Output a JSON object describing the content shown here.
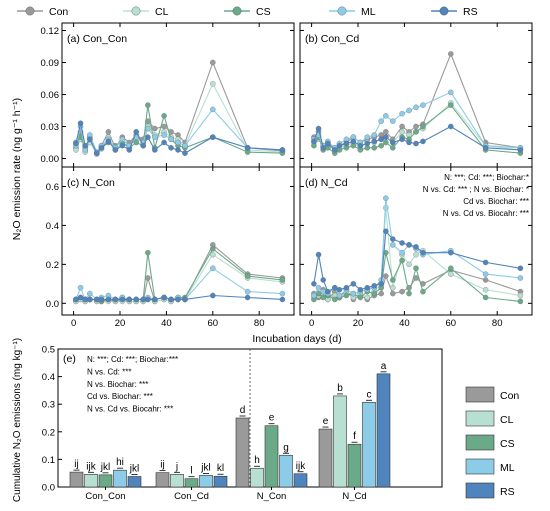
{
  "colors": {
    "Con": "#9a9a9a",
    "CL": "#b8e0d2",
    "CS": "#6aaa88",
    "ML": "#8ccce8",
    "RS": "#4f84bd"
  },
  "top_legend": [
    "Con",
    "CL",
    "CS",
    "ML",
    "RS"
  ],
  "line_panels": {
    "ylabel": "N₂O emission rate (ng g⁻¹ h⁻¹)",
    "xlabel": "Incubation days (d)",
    "x_ticks": [
      "0",
      "20",
      "40",
      "60",
      "80"
    ],
    "y_ticks_top": [
      "0.00",
      "0.03",
      "0.06",
      "0.09",
      "0.12"
    ],
    "y_ticks_bottom": [
      "0.0",
      "0.2",
      "0.4",
      "0.6"
    ],
    "panel_labels": [
      "(a) Con_Con",
      "(b) Con_Cd",
      "(c) N_Con",
      "(d) N_Cd"
    ],
    "stats_d": [
      "N: ***; Cd: ***; Biochar:*",
      "N vs. Cd: *** ; N vs. Biochar: *",
      "Cd vs. Biochar: ***",
      "N vs. Cd vs. Biocahr: ***"
    ]
  },
  "bar_panel": {
    "panel_label": "(e)",
    "ylabel": "Cumulative N₂O emissions (mg kg⁻¹)",
    "y_ticks": [
      "0.0",
      "0.1",
      "0.2",
      "0.3",
      "0.4",
      "0.5"
    ],
    "stats": [
      "N: ***; Cd: ***; Biochar:***",
      "N vs. Cd: ***",
      "N vs. Biochar: ***",
      "Cd vs. Biochar: ***",
      "N vs. Cd vs. Biocahr: ***"
    ],
    "legend": [
      "Con",
      "CL",
      "CS",
      "ML",
      "RS"
    ]
  },
  "chart_data": [
    {
      "type": "line",
      "title": "(a) Con_Con",
      "xlabel": "Incubation days (d)",
      "ylabel": "N₂O emission rate (ng g⁻¹ h⁻¹)",
      "x": [
        1,
        3,
        5,
        7,
        10,
        12,
        15,
        18,
        21,
        24,
        27,
        30,
        32,
        35,
        39,
        42,
        45,
        48,
        60,
        75,
        90
      ],
      "xlim": [
        -5,
        95
      ],
      "ylim": [
        -0.008,
        0.127
      ],
      "series": [
        {
          "name": "Con",
          "values": [
            0.01,
            0.025,
            0.008,
            0.02,
            0.005,
            0.012,
            0.025,
            0.01,
            0.02,
            0.015,
            0.022,
            0.018,
            0.035,
            0.028,
            0.03,
            0.025,
            0.022,
            0.015,
            0.09,
            0.01,
            0.007
          ]
        },
        {
          "name": "CL",
          "values": [
            0.008,
            0.018,
            0.006,
            0.015,
            0.004,
            0.009,
            0.02,
            0.008,
            0.015,
            0.012,
            0.018,
            0.015,
            0.03,
            0.022,
            0.025,
            0.02,
            0.018,
            0.012,
            0.07,
            0.008,
            0.006
          ]
        },
        {
          "name": "CS",
          "values": [
            0.015,
            0.02,
            0.01,
            0.018,
            0.005,
            0.01,
            0.015,
            0.012,
            0.015,
            0.01,
            0.015,
            0.012,
            0.05,
            0.01,
            0.04,
            0.018,
            0.012,
            0.01,
            0.02,
            0.006,
            0.005
          ]
        },
        {
          "name": "ML",
          "values": [
            0.012,
            0.03,
            0.008,
            0.022,
            0.006,
            0.012,
            0.018,
            0.01,
            0.018,
            0.012,
            0.02,
            0.015,
            0.028,
            0.02,
            0.022,
            0.018,
            0.015,
            0.012,
            0.046,
            0.01,
            0.008
          ]
        },
        {
          "name": "RS",
          "values": [
            0.014,
            0.033,
            0.012,
            0.018,
            0.005,
            0.01,
            0.016,
            0.008,
            0.012,
            0.008,
            0.025,
            0.012,
            0.02,
            0.008,
            0.015,
            0.01,
            0.008,
            0.005,
            0.02,
            0.01,
            0.008
          ]
        }
      ]
    },
    {
      "type": "line",
      "title": "(b) Con_Cd",
      "xlabel": "Incubation days (d)",
      "ylabel": "",
      "x": [
        1,
        3,
        5,
        7,
        10,
        12,
        15,
        18,
        21,
        24,
        27,
        30,
        32,
        35,
        39,
        42,
        45,
        48,
        60,
        75,
        90
      ],
      "xlim": [
        -5,
        95
      ],
      "ylim": [
        -0.008,
        0.127
      ],
      "series": [
        {
          "name": "Con",
          "values": [
            0.02,
            0.025,
            0.012,
            0.015,
            0.01,
            0.012,
            0.015,
            0.02,
            0.015,
            0.018,
            0.02,
            0.022,
            0.025,
            0.018,
            0.03,
            0.025,
            0.03,
            0.032,
            0.098,
            0.015,
            0.01
          ]
        },
        {
          "name": "CL",
          "values": [
            0.015,
            0.018,
            0.01,
            0.012,
            0.008,
            0.01,
            0.012,
            0.015,
            0.01,
            0.015,
            0.015,
            0.018,
            0.02,
            0.015,
            0.025,
            0.022,
            0.025,
            0.028,
            0.052,
            0.012,
            0.008
          ]
        },
        {
          "name": "CS",
          "values": [
            0.012,
            0.02,
            0.008,
            0.01,
            0.005,
            0.008,
            0.01,
            0.012,
            0.008,
            0.01,
            0.01,
            0.012,
            0.015,
            0.01,
            0.02,
            0.018,
            0.025,
            0.03,
            0.05,
            0.008,
            0.005
          ]
        },
        {
          "name": "ML",
          "values": [
            0.018,
            0.022,
            0.012,
            0.016,
            0.01,
            0.014,
            0.018,
            0.02,
            0.015,
            0.02,
            0.022,
            0.035,
            0.04,
            0.035,
            0.042,
            0.045,
            0.048,
            0.05,
            0.062,
            0.012,
            0.01
          ]
        },
        {
          "name": "RS",
          "values": [
            0.016,
            0.028,
            0.01,
            0.014,
            0.008,
            0.012,
            0.014,
            0.016,
            0.012,
            0.014,
            0.016,
            0.018,
            0.02,
            0.015,
            0.018,
            0.015,
            0.014,
            0.016,
            0.03,
            0.01,
            0.008
          ]
        }
      ]
    },
    {
      "type": "line",
      "title": "(c) N_Con",
      "xlabel": "Incubation days (d)",
      "ylabel": "",
      "x": [
        1,
        3,
        5,
        7,
        10,
        12,
        15,
        18,
        21,
        24,
        27,
        30,
        32,
        35,
        39,
        42,
        45,
        48,
        60,
        75,
        90
      ],
      "xlim": [
        -5,
        95
      ],
      "ylim": [
        -0.06,
        0.7
      ],
      "series": [
        {
          "name": "Con",
          "values": [
            0.01,
            0.02,
            0.01,
            0.02,
            0.01,
            0.01,
            0.02,
            0.01,
            0.02,
            0.01,
            0.01,
            0.01,
            0.13,
            0.01,
            0.02,
            0.01,
            0.02,
            0.02,
            0.3,
            0.15,
            0.13
          ]
        },
        {
          "name": "CL",
          "values": [
            0.01,
            0.02,
            0.01,
            0.02,
            0.01,
            0.01,
            0.01,
            0.01,
            0.01,
            0.01,
            0.01,
            0.01,
            0.02,
            0.01,
            0.02,
            0.01,
            0.02,
            0.02,
            0.25,
            0.13,
            0.11
          ]
        },
        {
          "name": "CS",
          "values": [
            0.02,
            0.03,
            0.02,
            0.02,
            0.02,
            0.01,
            0.02,
            0.02,
            0.03,
            0.02,
            0.02,
            0.02,
            0.26,
            0.02,
            0.03,
            0.02,
            0.03,
            0.03,
            0.28,
            0.14,
            0.12
          ]
        },
        {
          "name": "ML",
          "values": [
            0.02,
            0.08,
            0.02,
            0.05,
            0.02,
            0.03,
            0.04,
            0.02,
            0.03,
            0.02,
            0.02,
            0.02,
            0.03,
            0.02,
            0.03,
            0.02,
            0.03,
            0.02,
            0.18,
            0.06,
            0.05
          ]
        },
        {
          "name": "RS",
          "values": [
            0.02,
            0.03,
            0.02,
            0.02,
            0.02,
            0.02,
            0.02,
            0.02,
            0.02,
            0.02,
            0.02,
            0.02,
            0.02,
            0.02,
            0.03,
            0.02,
            0.02,
            0.02,
            0.04,
            0.03,
            0.02
          ]
        }
      ]
    },
    {
      "type": "line",
      "title": "(d) N_Cd",
      "xlabel": "Incubation days (d)",
      "ylabel": "",
      "x": [
        1,
        3,
        5,
        7,
        10,
        12,
        15,
        18,
        21,
        24,
        27,
        30,
        32,
        35,
        39,
        42,
        45,
        48,
        60,
        75,
        90
      ],
      "xlim": [
        -5,
        95
      ],
      "ylim": [
        -0.06,
        0.7
      ],
      "series": [
        {
          "name": "Con",
          "values": [
            0.05,
            0.03,
            0.07,
            0.02,
            0.06,
            0.03,
            0.07,
            0.02,
            0.04,
            0.02,
            0.04,
            0.05,
            0.14,
            0.05,
            0.06,
            0.08,
            0.13,
            0.1,
            0.17,
            0.12,
            0.06
          ]
        },
        {
          "name": "CL",
          "values": [
            0.03,
            0.04,
            0.05,
            0.02,
            0.04,
            0.03,
            0.05,
            0.03,
            0.05,
            0.03,
            0.06,
            0.1,
            0.49,
            0.08,
            0.25,
            0.2,
            0.25,
            0.27,
            0.15,
            0.07,
            0.04
          ]
        },
        {
          "name": "CS",
          "values": [
            0.02,
            0.05,
            0.03,
            0.04,
            0.02,
            0.03,
            0.04,
            0.05,
            0.03,
            0.06,
            0.05,
            0.08,
            0.26,
            0.12,
            0.22,
            0.05,
            0.18,
            0.06,
            0.18,
            0.03,
            0.01
          ]
        },
        {
          "name": "ML",
          "values": [
            0.04,
            0.08,
            0.06,
            0.05,
            0.08,
            0.04,
            0.07,
            0.05,
            0.06,
            0.07,
            0.08,
            0.12,
            0.54,
            0.3,
            0.26,
            0.3,
            0.28,
            0.25,
            0.27,
            0.15,
            0.13
          ]
        },
        {
          "name": "RS",
          "values": [
            0.1,
            0.25,
            0.12,
            0.06,
            0.08,
            0.07,
            0.08,
            0.1,
            0.07,
            0.08,
            0.09,
            0.1,
            0.37,
            0.33,
            0.31,
            0.3,
            0.29,
            0.26,
            0.26,
            0.21,
            0.18
          ]
        }
      ]
    },
    {
      "type": "bar",
      "title": "(e)",
      "ylabel": "Cumulative N₂O emissions (mg kg⁻¹)",
      "categories": [
        "Con_Con",
        "Con_Cd",
        "N_Con",
        "N_Cd"
      ],
      "ylim": [
        0,
        0.5
      ],
      "series": [
        {
          "name": "Con",
          "values": [
            0.054,
            0.052,
            0.25,
            0.21
          ]
        },
        {
          "name": "CL",
          "values": [
            0.046,
            0.046,
            0.068,
            0.33
          ]
        },
        {
          "name": "CS",
          "values": [
            0.044,
            0.03,
            0.222,
            0.155
          ]
        },
        {
          "name": "ML",
          "values": [
            0.061,
            0.042,
            0.115,
            0.307
          ]
        },
        {
          "name": "RS",
          "values": [
            0.038,
            0.039,
            0.048,
            0.41
          ]
        }
      ],
      "letters": [
        [
          "ij",
          "ijk",
          "jkl",
          "hi",
          "jkl"
        ],
        [
          "ij",
          "j",
          "l",
          "jkl",
          "kl"
        ],
        [
          "d",
          "h",
          "e",
          "g",
          "ijk"
        ],
        [
          "e",
          "b",
          "f",
          "c",
          "a"
        ]
      ]
    }
  ]
}
